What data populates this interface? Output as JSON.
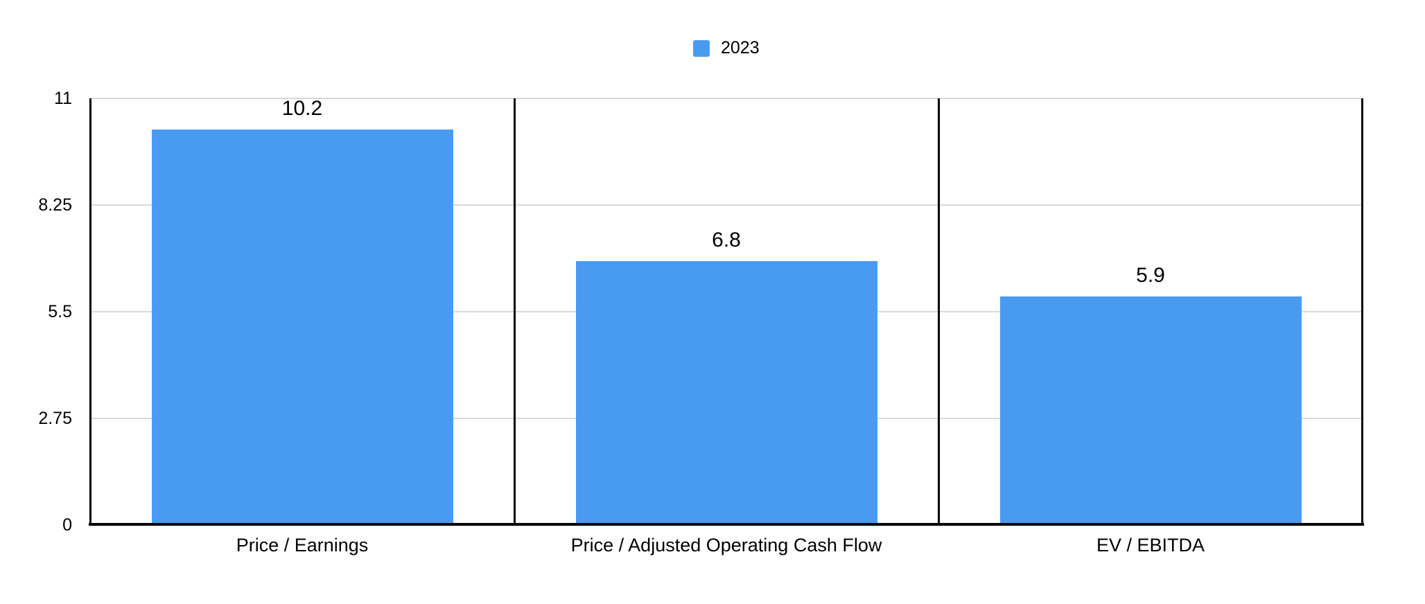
{
  "legend": {
    "items": [
      {
        "label": "2023",
        "color": "#499BF2"
      }
    ]
  },
  "chart_data": {
    "type": "bar",
    "categories": [
      "Price / Earnings",
      "Price / Adjusted Operating Cash Flow",
      "EV / EBITDA"
    ],
    "series": [
      {
        "name": "2023",
        "color": "#499BF2",
        "values": [
          10.2,
          6.8,
          5.9
        ]
      }
    ],
    "value_labels": [
      "10.2",
      "6.8",
      "5.9"
    ],
    "title": "",
    "xlabel": "",
    "ylabel": "",
    "ylim": [
      0,
      11
    ],
    "yticks": [
      0,
      2.75,
      5.5,
      8.25,
      11
    ],
    "ytick_labels": [
      "0",
      "2.75",
      "5.5",
      "8.25",
      "11"
    ],
    "grid": true,
    "legend_position": "top-center"
  },
  "colors": {
    "bar": "#499BF2",
    "gridline": "#D9D9D9",
    "axis": "#000000",
    "divider": "#000000",
    "background": "#FFFFFF",
    "text": "#000000"
  }
}
